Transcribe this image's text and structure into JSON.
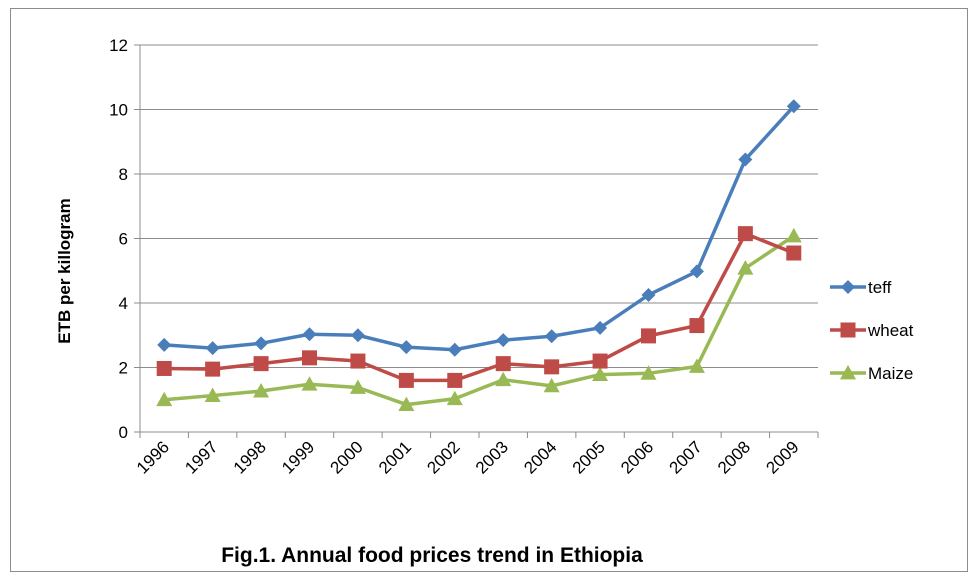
{
  "chart_data": {
    "type": "line",
    "title": "",
    "caption": "Fig.1. Annual food prices trend in Ethiopia",
    "xlabel": "",
    "ylabel": "ETB per killogram",
    "ylim": [
      0,
      12
    ],
    "yticks": [
      0,
      2,
      4,
      6,
      8,
      10,
      12
    ],
    "grid": "horizontal",
    "legend_position": "right",
    "categories": [
      "1996",
      "1997",
      "1998",
      "1999",
      "2000",
      "2001",
      "2002",
      "2003",
      "2004",
      "2005",
      "2006",
      "2007",
      "2008",
      "2009"
    ],
    "series": [
      {
        "name": "teff",
        "color": "#4a7ebb",
        "marker": "diamond",
        "values": [
          2.7,
          2.6,
          2.75,
          3.03,
          3.0,
          2.63,
          2.55,
          2.85,
          2.97,
          3.23,
          4.25,
          4.98,
          8.45,
          10.1
        ]
      },
      {
        "name": "wheat",
        "color": "#be4b48",
        "marker": "square",
        "values": [
          1.97,
          1.95,
          2.12,
          2.3,
          2.2,
          1.6,
          1.6,
          2.12,
          2.02,
          2.2,
          2.98,
          3.3,
          6.15,
          5.55
        ]
      },
      {
        "name": "Maize",
        "color": "#98b954",
        "marker": "triangle",
        "values": [
          1.0,
          1.13,
          1.27,
          1.48,
          1.38,
          0.85,
          1.03,
          1.62,
          1.43,
          1.78,
          1.82,
          2.03,
          5.08,
          6.08
        ]
      }
    ]
  }
}
